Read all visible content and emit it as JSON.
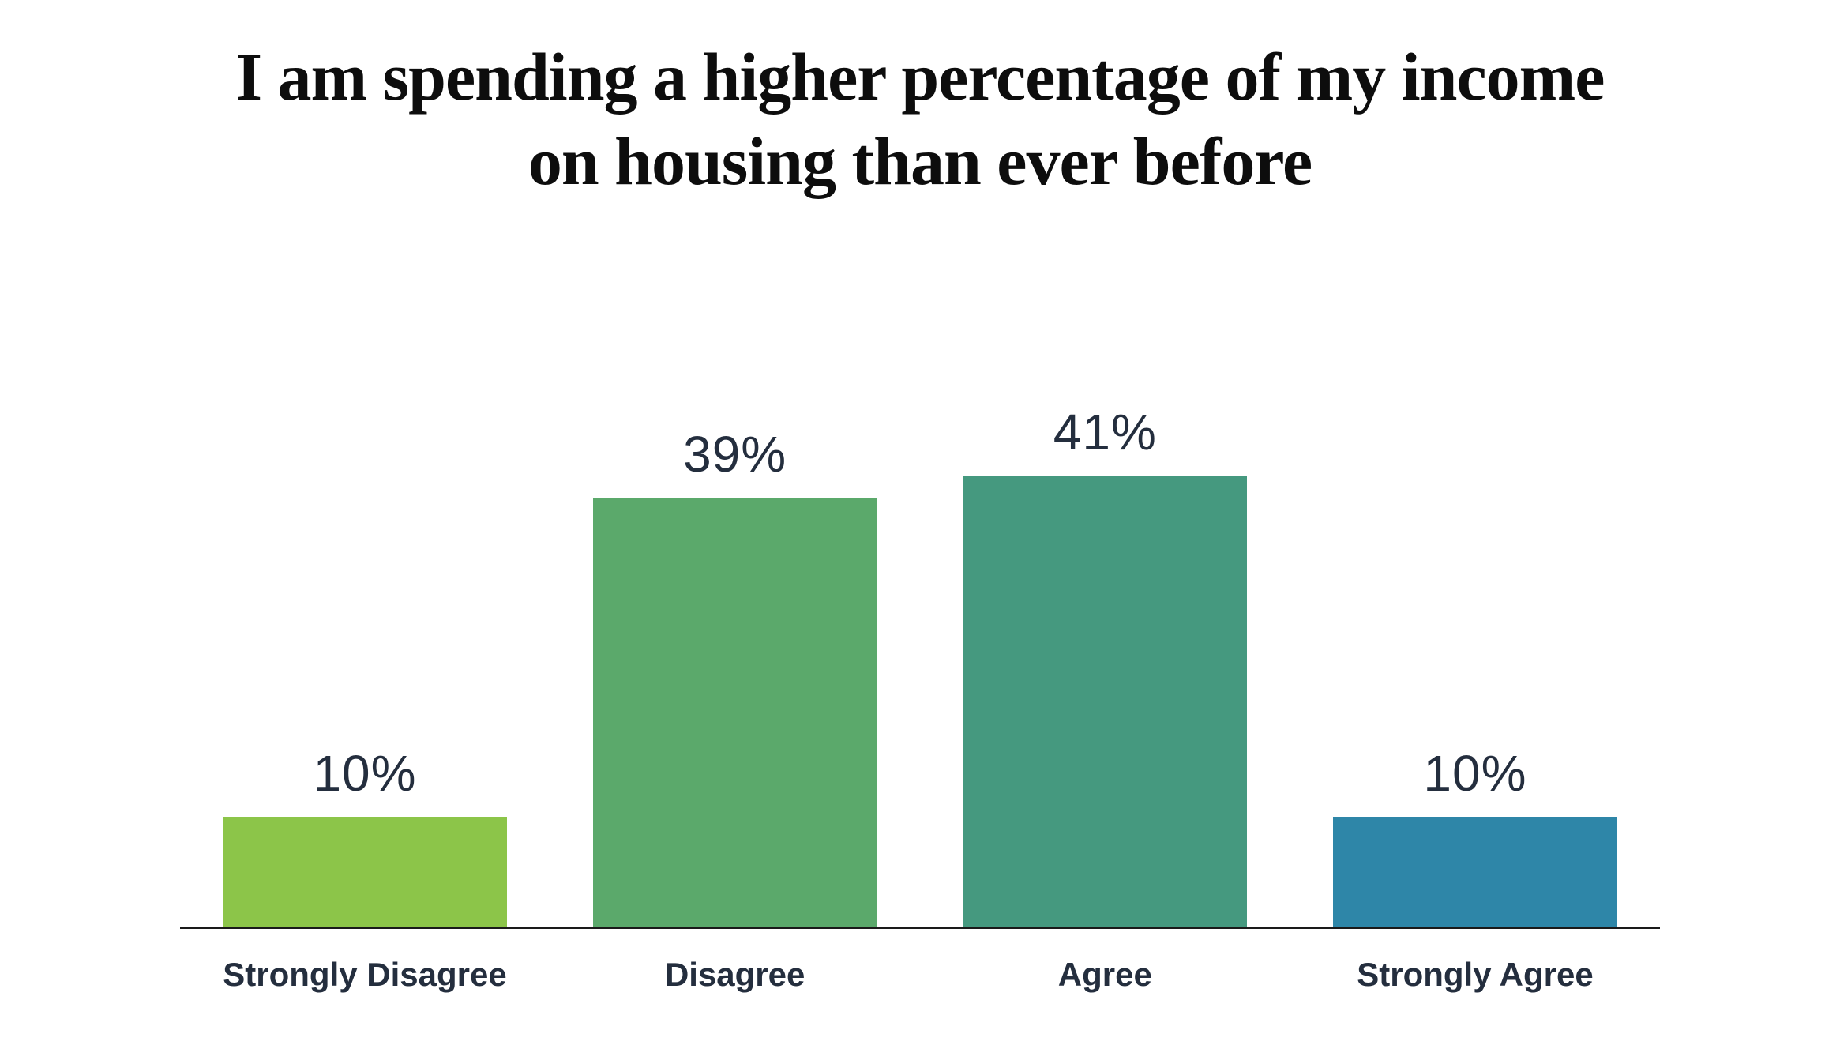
{
  "header": {
    "title_line1": "I am spending a higher percentage of my income",
    "title_line2": "on housing than ever before"
  },
  "chart_data": {
    "type": "bar",
    "title": "I am spending a higher percentage of my income on housing than ever before",
    "categories": [
      "Strongly Disagree",
      "Disagree",
      "Agree",
      "Strongly Agree"
    ],
    "values": [
      10,
      39,
      41,
      10
    ],
    "value_labels": [
      "10%",
      "39%",
      "41%",
      "10%"
    ],
    "bar_colors": [
      "#8CC549",
      "#5BA96B",
      "#45997F",
      "#2E86A8"
    ],
    "text_color": "#242E3E",
    "axis_color": "#1A1A1A",
    "xlabel": "",
    "ylabel": "",
    "ylim": [
      0,
      45
    ],
    "grid": false,
    "legend": "none"
  }
}
